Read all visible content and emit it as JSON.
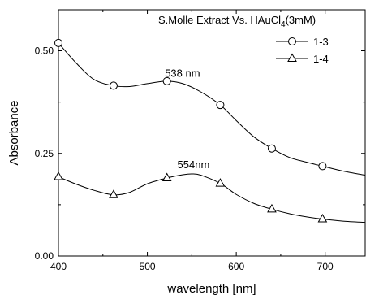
{
  "chart_data": {
    "type": "line",
    "title": "S.Molle Extract Vs. HAuCl4(3mM)",
    "title_main": "S.Molle Extract Vs. HAuCl",
    "title_sub": "4",
    "title_tail": "(3mM)",
    "xlabel": "wavelength [nm]",
    "ylabel": "Absorbance",
    "xlim": [
      400,
      745
    ],
    "ylim": [
      0.0,
      0.6
    ],
    "xticks": [
      400,
      500,
      600,
      700
    ],
    "yticks": [
      0.0,
      0.25,
      0.5
    ],
    "xtick_labels": [
      "400",
      "500",
      "600",
      "700"
    ],
    "ytick_labels": [
      "0.00",
      "0.25",
      "0.50"
    ],
    "grid": false,
    "legend_position": "top-right",
    "series": [
      {
        "name": "1-3",
        "marker": "circle",
        "x": [
          400,
          420,
          440,
          462,
          480,
          500,
          522,
          540,
          560,
          582,
          600,
          620,
          640,
          660,
          680,
          697,
          720,
          745
        ],
        "y": [
          0.519,
          0.47,
          0.43,
          0.415,
          0.413,
          0.42,
          0.426,
          0.42,
          0.4,
          0.368,
          0.33,
          0.29,
          0.262,
          0.24,
          0.228,
          0.219,
          0.207,
          0.197
        ],
        "marker_x": [
          400,
          462,
          522,
          582,
          640,
          697
        ],
        "marker_y": [
          0.519,
          0.415,
          0.426,
          0.368,
          0.262,
          0.219
        ]
      },
      {
        "name": "1-4",
        "marker": "triangle",
        "x": [
          400,
          420,
          440,
          462,
          480,
          500,
          522,
          540,
          550,
          560,
          582,
          600,
          620,
          640,
          660,
          680,
          697,
          720,
          745
        ],
        "y": [
          0.193,
          0.175,
          0.16,
          0.149,
          0.155,
          0.176,
          0.19,
          0.198,
          0.2,
          0.197,
          0.177,
          0.15,
          0.128,
          0.114,
          0.103,
          0.095,
          0.09,
          0.085,
          0.082
        ],
        "marker_x": [
          400,
          462,
          522,
          582,
          640,
          697
        ],
        "marker_y": [
          0.193,
          0.149,
          0.19,
          0.177,
          0.114,
          0.09
        ]
      }
    ],
    "annotations": [
      {
        "text": "538 nm",
        "x": 538,
        "y": 0.445
      },
      {
        "text": "554nm",
        "x": 552,
        "y": 0.222
      }
    ]
  }
}
